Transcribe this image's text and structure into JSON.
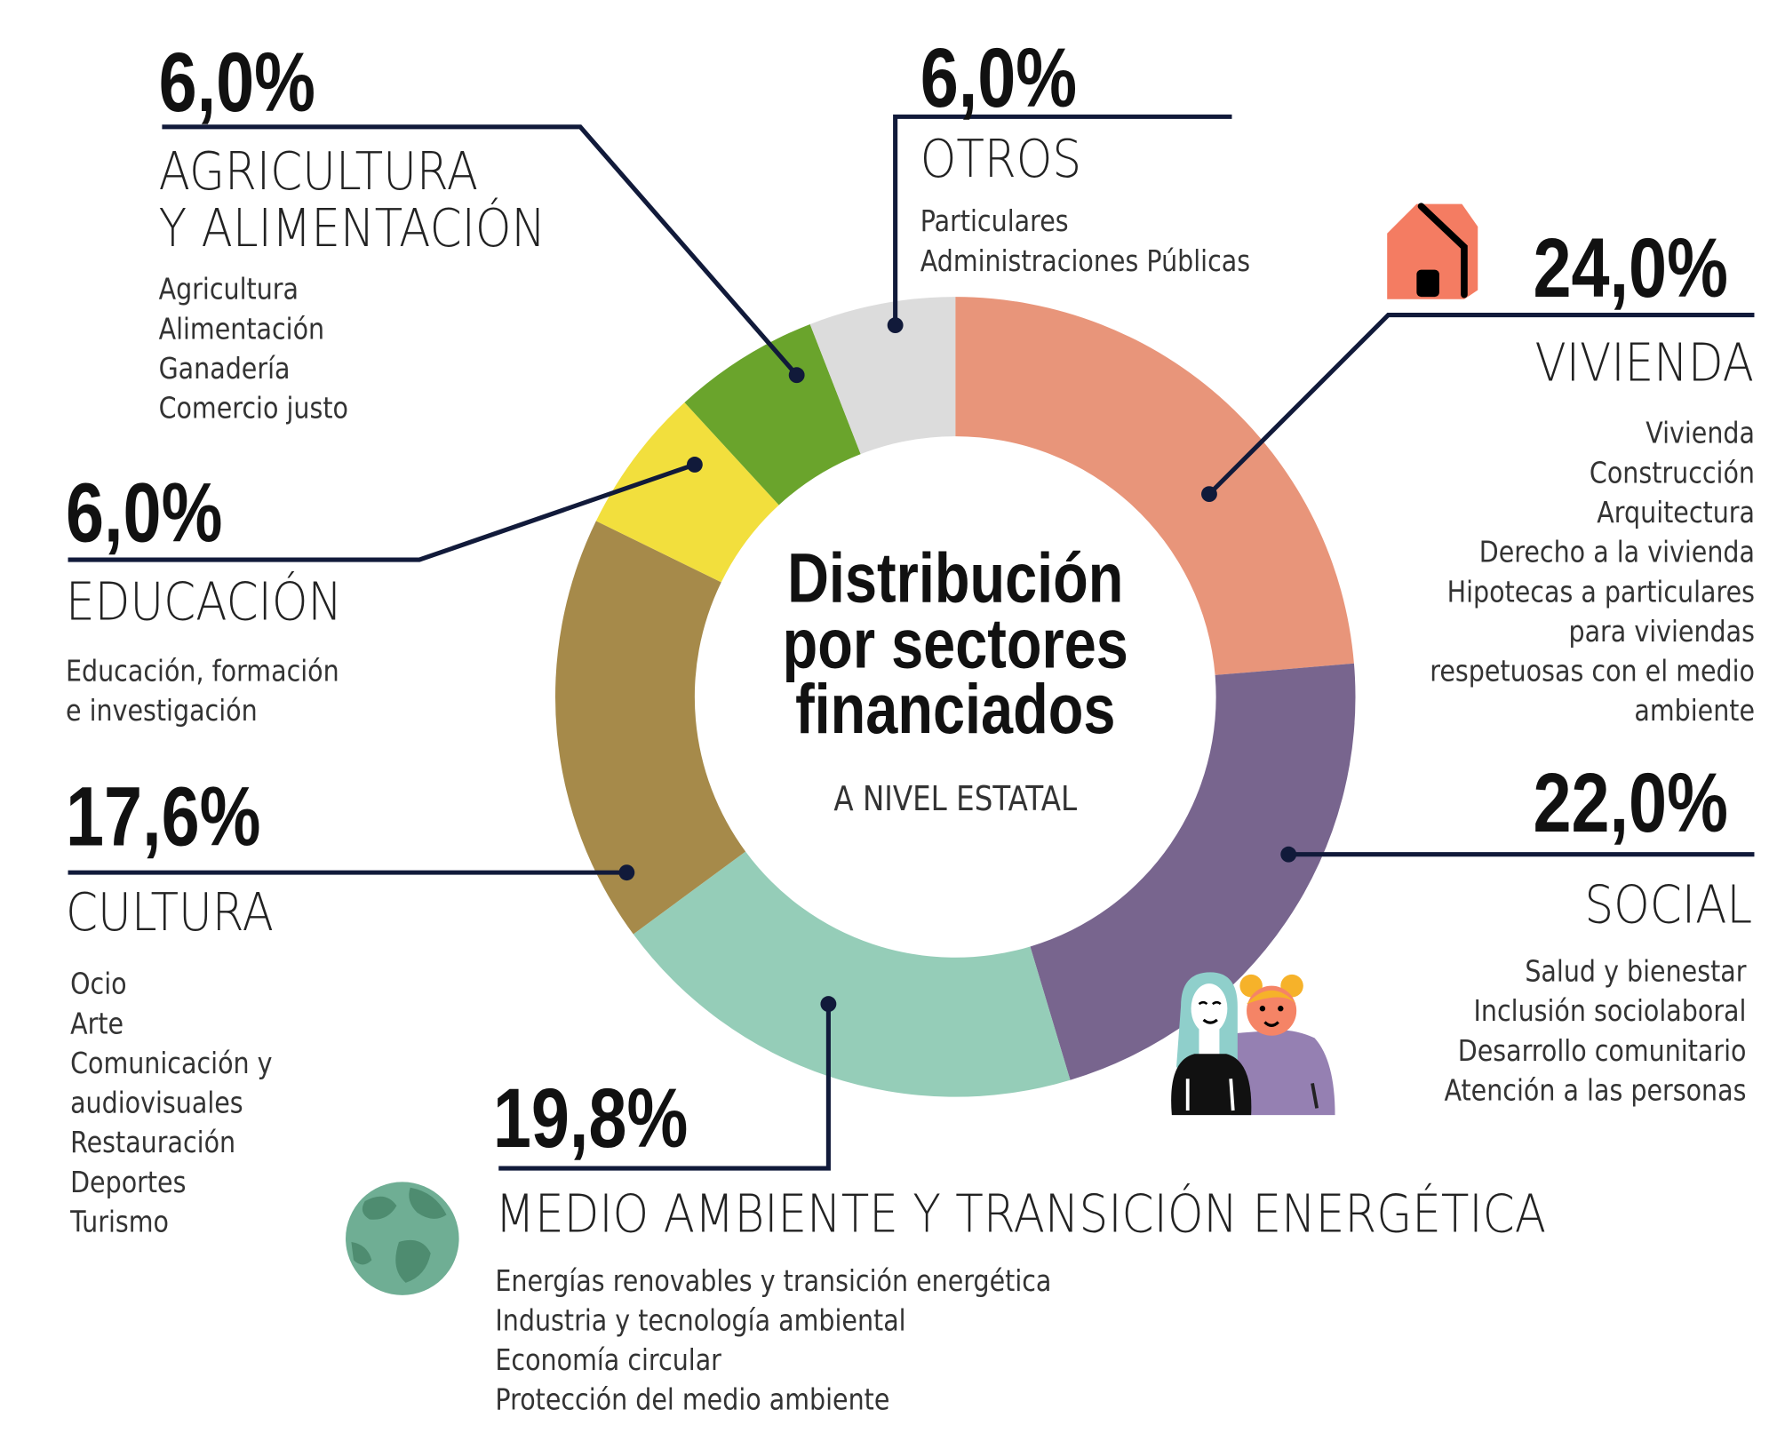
{
  "chart_data": {
    "type": "pie",
    "variant": "donut",
    "title": "Distribución por sectores financiados",
    "subtitle": "A NIVEL ESTATAL",
    "title_lines": [
      "Distribución",
      "por sectores",
      "financiados"
    ],
    "slices": [
      {
        "key": "vivienda",
        "label": "VIVIENDA",
        "value": 24.0,
        "pct_label": "24,0%",
        "color": "#E8957A",
        "items": [
          "Vivienda",
          "Construcción",
          "Arquitectura",
          "Derecho a la vivienda",
          "Hipotecas a particulares",
          "para viviendas",
          "respetuosas con el medio",
          "ambiente"
        ]
      },
      {
        "key": "social",
        "label": "SOCIAL",
        "value": 22.0,
        "pct_label": "22,0%",
        "color": "#78658E",
        "items": [
          "Salud y bienestar",
          "Inclusión sociolaboral",
          "Desarrollo comunitario",
          "Atención a las personas"
        ]
      },
      {
        "key": "medio",
        "label": "MEDIO AMBIENTE Y TRANSICIÓN ENERGÉTICA",
        "value": 19.8,
        "pct_label": "19,8%",
        "color": "#95CDB8",
        "items": [
          "Energías renovables y transición energética",
          "Industria y tecnología ambiental",
          "Economía circular",
          "Protección del medio ambiente"
        ]
      },
      {
        "key": "cultura",
        "label": "CULTURA",
        "value": 17.6,
        "pct_label": "17,6%",
        "color": "#A68A4A",
        "items": [
          "Ocio",
          "Arte",
          "Comunicación y",
          "audiovisuales",
          "Restauración",
          "Deportes",
          "Turismo"
        ]
      },
      {
        "key": "educacion",
        "label": "EDUCACIÓN",
        "value": 6.0,
        "pct_label": "6,0%",
        "color": "#F2DF3D",
        "items": [
          "Educación, formación",
          "e investigación"
        ]
      },
      {
        "key": "agricultura",
        "label_lines": [
          "AGRICULTURA",
          "Y ALIMENTACIÓN"
        ],
        "value": 6.0,
        "pct_label": "6,0%",
        "color": "#6AA42C",
        "items": [
          "Agricultura",
          "Alimentación",
          "Ganadería",
          "Comercio justo"
        ]
      },
      {
        "key": "otros",
        "label": "OTROS",
        "value": 6.0,
        "pct_label": "6,0%",
        "color": "#DCDCDC",
        "items": [
          "Particulares",
          "Administraciones Públicas"
        ]
      }
    ],
    "start_angle": "top",
    "direction": "clockwise",
    "leader_line_color": "#111a3a"
  },
  "icons": {
    "vivienda": "house-icon",
    "social": "people-icon",
    "medio": "globe-icon"
  }
}
